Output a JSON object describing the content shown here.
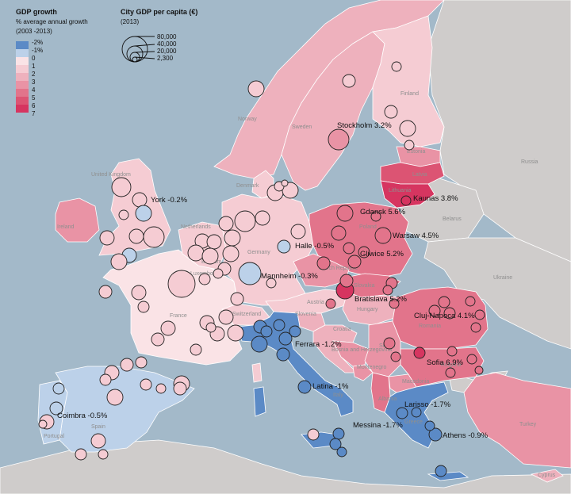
{
  "legend": {
    "growth_title": "GDP growth",
    "growth_subtitle": "% average annual growth",
    "growth_period": "(2003 -2013)",
    "growth_classes": [
      {
        "label": "-2%",
        "color": "#5b8ac6"
      },
      {
        "label": "-1%",
        "color": "#bcd1e9"
      },
      {
        "label": "0",
        "color": "#fae3e6"
      },
      {
        "label": "1",
        "color": "#f5ccd3"
      },
      {
        "label": "2",
        "color": "#eeb1bd"
      },
      {
        "label": "3",
        "color": "#e993a5"
      },
      {
        "label": "4",
        "color": "#e2748b"
      },
      {
        "label": "5",
        "color": "#dc5473"
      },
      {
        "label": "6",
        "color": "#d63560"
      },
      {
        "label": "7",
        "color": "#ffffff"
      }
    ],
    "size_title": "City GDP per capita (€)",
    "size_period": "(2013)",
    "size_classes": [
      "80,000",
      "40,000",
      "20,000",
      "2,300"
    ]
  },
  "colors": {
    "sea": "#a3b9c9",
    "non_eu_land": "#cfcccb",
    "border": "#ffffff"
  },
  "countries": [
    {
      "name": "Norway",
      "growth": "1-2"
    },
    {
      "name": "Sweden",
      "growth": "2-3"
    },
    {
      "name": "Finland",
      "growth": "0-1"
    },
    {
      "name": "Estonia",
      "growth": "3-4"
    },
    {
      "name": "Latvia",
      "growth": "5-6"
    },
    {
      "name": "Lithuania",
      "growth": "6-7"
    },
    {
      "name": "Russia",
      "growth": null
    },
    {
      "name": "Belarus",
      "growth": null
    },
    {
      "name": "Ukraine",
      "growth": null
    },
    {
      "name": "Poland",
      "growth": "4-5"
    },
    {
      "name": "Denmark",
      "growth": "0-1"
    },
    {
      "name": "United Kingdom",
      "growth": "0-1"
    },
    {
      "name": "Ireland",
      "growth": "3-4"
    },
    {
      "name": "Netherlands",
      "growth": "0-1"
    },
    {
      "name": "Belgium",
      "growth": "0-1"
    },
    {
      "name": "Luxembourg",
      "growth": "1-2"
    },
    {
      "name": "Germany",
      "growth": "1-2"
    },
    {
      "name": "Czech Republic",
      "growth": "3-4"
    },
    {
      "name": "Slovakia",
      "growth": "4-5"
    },
    {
      "name": "Austria",
      "growth": "1-2"
    },
    {
      "name": "Hungary",
      "growth": "2-3"
    },
    {
      "name": "Slovenia",
      "growth": "2-3"
    },
    {
      "name": "Croatia",
      "growth": "2-3"
    },
    {
      "name": "Bosnia and Herzegovina",
      "growth": "3-4"
    },
    {
      "name": "Serbia",
      "growth": "3-4"
    },
    {
      "name": "Montenegro",
      "growth": "3-4"
    },
    {
      "name": "Macedonia",
      "growth": "3-4"
    },
    {
      "name": "Albania",
      "growth": "4-5"
    },
    {
      "name": "Romania",
      "growth": "4-5"
    },
    {
      "name": "Bulgaria",
      "growth": "4-5"
    },
    {
      "name": "Greece",
      "growth": "-2 to -1"
    },
    {
      "name": "Turkey",
      "growth": "3-4"
    },
    {
      "name": "Cyprus",
      "growth": "1-2"
    },
    {
      "name": "Switzerland",
      "growth": "0-1"
    },
    {
      "name": "France",
      "growth": "0-1"
    },
    {
      "name": "Spain",
      "growth": "-1 to 0"
    },
    {
      "name": "Portugal",
      "growth": "-1 to 0"
    },
    {
      "name": "Italy",
      "growth": "-2 to -1"
    }
  ],
  "map_labels": {
    "norway": "Norway",
    "sweden": "Sweden",
    "finland": "Finland",
    "estonia": "Estonia",
    "latvia": "Latvia",
    "lithuania": "Lithuania",
    "russia": "Russia",
    "belarus": "Belarus",
    "ukraine": "Ukraine",
    "poland": "Poland",
    "denmark": "Denmark",
    "uk": "United Kingdom",
    "ireland": "Ireland",
    "netherlands": "Netherlands",
    "belgium": "Belgium",
    "luxembourg": "Luxembourg",
    "germany": "Germany",
    "czech": "Czech Republic",
    "slovakia": "Slovakia",
    "austria": "Austria",
    "hungary": "Hungary",
    "slovenia": "Slovenia",
    "croatia": "Croatia",
    "bosnia": "Bosnia and Herzegovina",
    "serbia": "Serbia",
    "montenegro": "Montenegro",
    "macedonia": "Macedonia",
    "albania": "Albania",
    "romania": "Romania",
    "bulgaria": "Bulgaria",
    "greece": "Greece",
    "turkey": "Turkey",
    "cyprus": "Cyprus",
    "switzerland": "Switzerland",
    "france": "France",
    "spain": "Spain",
    "portugal": "Portugal",
    "italy": "Italy"
  },
  "city_labels": [
    {
      "text": "Stockholm 3.2%"
    },
    {
      "text": "York -0.2%"
    },
    {
      "text": "Kaunas 3.8%"
    },
    {
      "text": "Gdansk 5.6%"
    },
    {
      "text": "Warsaw 4.5%"
    },
    {
      "text": "Halle -0.5%"
    },
    {
      "text": "Gliwice 5.2%"
    },
    {
      "text": "Mannheim -0.3%"
    },
    {
      "text": "Bratislava 5.2%"
    },
    {
      "text": "Cluj-Napoca 4.1%"
    },
    {
      "text": "Ferrara -1.2%"
    },
    {
      "text": "Sofia 6.9%"
    },
    {
      "text": "Latina -1%"
    },
    {
      "text": "Larisso -1.7%"
    },
    {
      "text": "Coimbra -0.5%"
    },
    {
      "text": "Messina -1.7%"
    },
    {
      "text": "Athens -0.9%"
    }
  ]
}
